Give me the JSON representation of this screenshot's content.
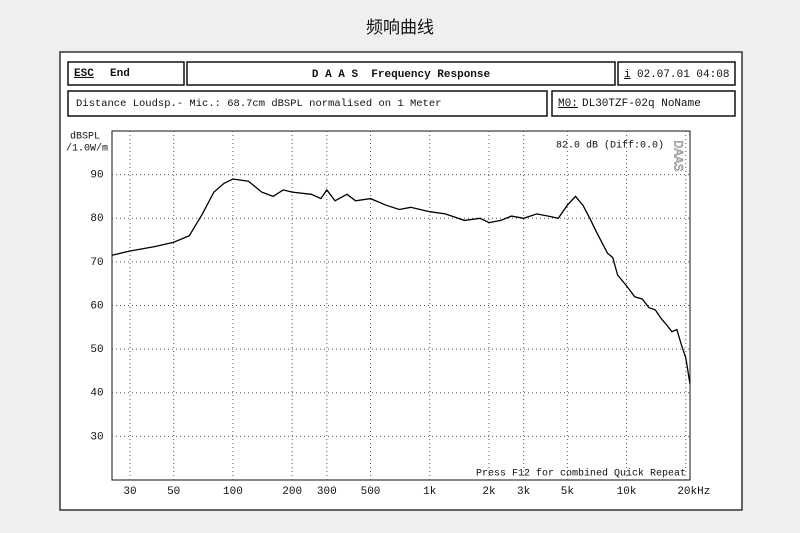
{
  "page_title": "频响曲线",
  "header": {
    "esc": "ESC",
    "end": "End",
    "program": "D A A S  Frequency Response",
    "info_key": "i",
    "datetime": "02.07.01 04:08",
    "measurement": "Distance Loudsp.- Mic.: 68.7cm dBSPL normalised on 1 Meter",
    "memory_key": "M0:",
    "memory_name": "DL30TZF-02q NoName"
  },
  "chart_data": {
    "type": "line",
    "ylabel": [
      "dBSPL",
      "/1.0W/m"
    ],
    "annotations": [
      "82.0 dB (Diff:0.0)",
      "Press F12 for combined Quick Repeat",
      "DAAS"
    ],
    "xscale": "log",
    "grid": true,
    "color": "#000000",
    "xlim": [
      24.3,
      21000
    ],
    "ylim": [
      20,
      100
    ],
    "xticks": [
      30,
      50,
      100,
      200,
      300,
      500,
      {
        "value": 1000,
        "label": "1k"
      },
      {
        "value": 2000,
        "label": "2k"
      },
      {
        "value": 3000,
        "label": "3k"
      },
      {
        "value": 5000,
        "label": "5k"
      },
      {
        "value": 10000,
        "label": "10k"
      },
      {
        "value": 20000,
        "label": "20kHz"
      }
    ],
    "yticks": [
      30,
      40,
      50,
      60,
      70,
      80,
      90
    ],
    "x": [
      24.3,
      30,
      40,
      50,
      60,
      70,
      80,
      90,
      100,
      120,
      140,
      160,
      180,
      200,
      250,
      280,
      300,
      330,
      380,
      420,
      500,
      600,
      700,
      800,
      1000,
      1200,
      1500,
      1800,
      2000,
      2300,
      2600,
      3000,
      3500,
      4000,
      4500,
      5000,
      5500,
      6000,
      6500,
      7000,
      8000,
      8500,
      9000,
      10000,
      11000,
      12000,
      13000,
      14000,
      15000,
      16000,
      17000,
      18000,
      19000,
      20000,
      21000
    ],
    "values": [
      71.5,
      72.5,
      73.5,
      74.5,
      76,
      81,
      86,
      88,
      89,
      88.5,
      86,
      85,
      86.5,
      86,
      85.5,
      84.5,
      86.5,
      84,
      85.5,
      84,
      84.5,
      83,
      82,
      82.5,
      81.5,
      81,
      79.5,
      80,
      79,
      79.5,
      80.5,
      80,
      81,
      80.5,
      80,
      83,
      85,
      83,
      80,
      77,
      72,
      71,
      67,
      64.5,
      62,
      61.5,
      59.5,
      59,
      57,
      55.5,
      54,
      54.5,
      51,
      48,
      42
    ]
  }
}
